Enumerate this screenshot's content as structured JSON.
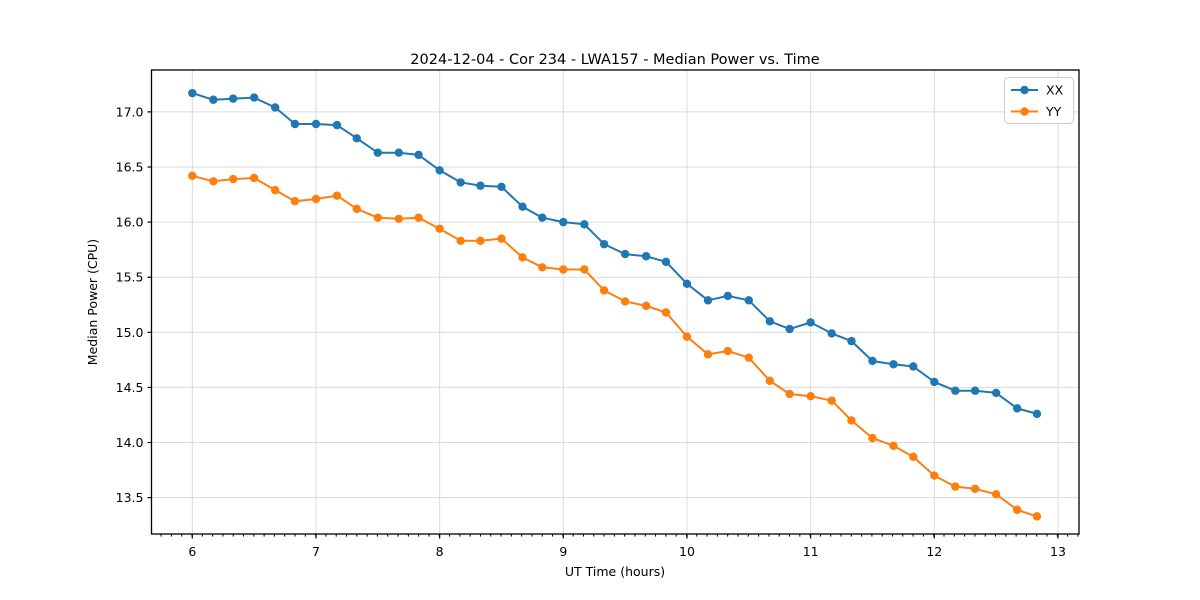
{
  "chart_data": {
    "type": "line",
    "title": "2024-12-04 - Cor 234 - LWA157 - Median Power vs. Time",
    "xlabel": "UT Time (hours)",
    "ylabel": "Median Power (CPU)",
    "xlim": [
      5.67,
      13.17
    ],
    "ylim": [
      13.17,
      17.38
    ],
    "xticks": [
      6,
      7,
      8,
      9,
      10,
      11,
      12,
      13
    ],
    "yticks": [
      13.5,
      14.0,
      14.5,
      15.0,
      15.5,
      16.0,
      16.5,
      17.0
    ],
    "minor_xtick_step": 0.0833,
    "grid": true,
    "grid_color": "#dcdcdc",
    "spine_color": "#000000",
    "legend_position": "upper right",
    "x": [
      6.0,
      6.17,
      6.33,
      6.5,
      6.67,
      6.83,
      7.0,
      7.17,
      7.33,
      7.5,
      7.67,
      7.83,
      8.0,
      8.17,
      8.33,
      8.5,
      8.67,
      8.83,
      9.0,
      9.17,
      9.33,
      9.5,
      9.67,
      9.83,
      10.0,
      10.17,
      10.33,
      10.5,
      10.67,
      10.83,
      11.0,
      11.17,
      11.33,
      11.5,
      11.67,
      11.83,
      12.0,
      12.17,
      12.33,
      12.5,
      12.67,
      12.83
    ],
    "series": [
      {
        "name": "XX",
        "color": "#1f77b4",
        "values": [
          17.17,
          17.11,
          17.12,
          17.13,
          17.04,
          16.89,
          16.89,
          16.88,
          16.76,
          16.63,
          16.63,
          16.61,
          16.47,
          16.36,
          16.33,
          16.32,
          16.14,
          16.04,
          16.0,
          15.98,
          15.8,
          15.71,
          15.69,
          15.64,
          15.44,
          15.29,
          15.33,
          15.29,
          15.1,
          15.03,
          15.09,
          14.99,
          14.92,
          14.74,
          14.71,
          14.69,
          14.55,
          14.47,
          14.47,
          14.45,
          14.31,
          14.26
        ]
      },
      {
        "name": "YY",
        "color": "#ff7f0e",
        "values": [
          16.42,
          16.37,
          16.39,
          16.4,
          16.29,
          16.19,
          16.21,
          16.24,
          16.12,
          16.04,
          16.03,
          16.04,
          15.94,
          15.83,
          15.83,
          15.85,
          15.68,
          15.59,
          15.57,
          15.57,
          15.38,
          15.28,
          15.24,
          15.18,
          14.96,
          14.8,
          14.83,
          14.77,
          14.56,
          14.44,
          14.42,
          14.38,
          14.2,
          14.04,
          13.97,
          13.87,
          13.7,
          13.6,
          13.58,
          13.53,
          13.39,
          13.33
        ]
      }
    ]
  }
}
